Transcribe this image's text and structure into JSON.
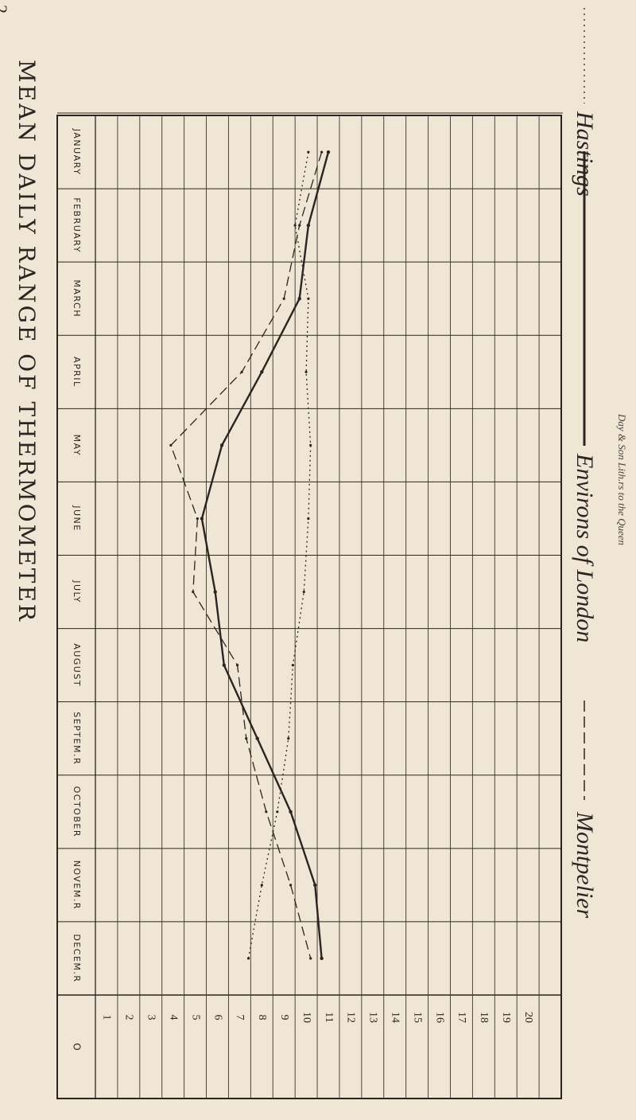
{
  "page_number": "2",
  "chart_data": {
    "type": "line",
    "title": "MEAN DAILY RANGE OF THERMOMETER",
    "categories": [
      "JANUARY",
      "FEBRUARY",
      "MARCH",
      "APRIL",
      "MAY",
      "JUNE",
      "JULY",
      "AUGUST",
      "SEPTEM.R",
      "OCTOBER",
      "NOVEM.R",
      "DECEM.R"
    ],
    "category_header": "O",
    "scale_ticks": [
      20,
      19,
      18,
      17,
      16,
      15,
      14,
      13,
      12,
      11,
      10,
      9,
      8,
      7,
      6,
      5,
      4,
      3,
      2,
      1
    ],
    "scale_range": [
      0,
      21
    ],
    "series": [
      {
        "name": "Hastings",
        "style": "solid",
        "values": [
          10.5,
          9.6,
          9.2,
          7.5,
          5.7,
          4.8,
          5.4,
          5.8,
          7.3,
          8.8,
          9.9,
          10.2
        ]
      },
      {
        "name": "Environs of London",
        "style": "dashed",
        "values": [
          10.2,
          9.2,
          8.5,
          6.6,
          3.4,
          4.6,
          4.4,
          6.4,
          6.8,
          7.7,
          8.8,
          9.7
        ]
      },
      {
        "name": "Montpelier",
        "style": "dotted",
        "values": [
          9.6,
          9.0,
          9.6,
          9.5,
          9.7,
          9.6,
          9.4,
          8.9,
          8.7,
          8.2,
          7.5,
          6.9
        ]
      }
    ],
    "grid": true
  },
  "legend": {
    "hastings": "Hastings",
    "london": "Environs of London",
    "montpelier": "Montpelier"
  },
  "imprint": "Day & Son Lith.rs to the Queen"
}
